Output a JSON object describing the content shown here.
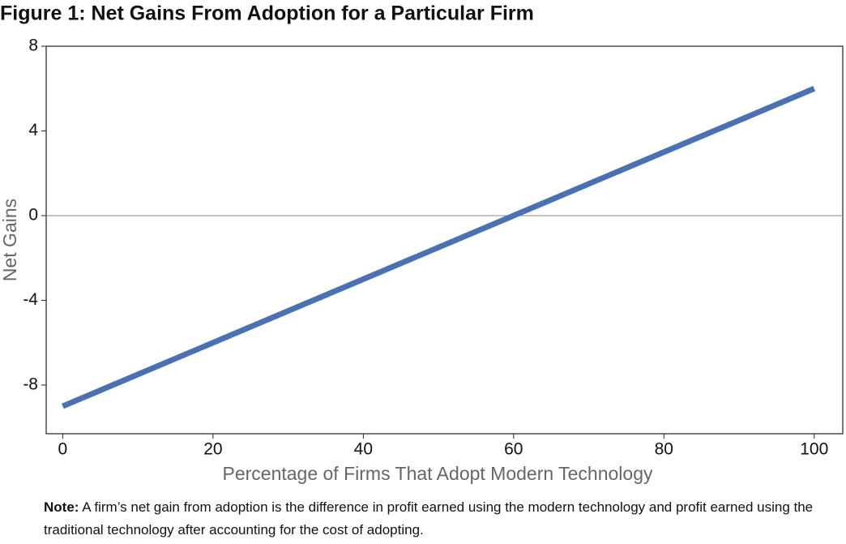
{
  "chart_data": {
    "type": "line",
    "title": "Figure 1: Net Gains From Adoption for a Particular Firm",
    "x_label": "Percentage of Firms That Adopt Modern Technology",
    "y_label": "Net Gains",
    "x": [
      0,
      100
    ],
    "series": [
      {
        "name": "Net gains",
        "color": "#4a72b2",
        "values": [
          -9,
          6
        ]
      }
    ],
    "xlim": [
      -2.2,
      103.8
    ],
    "ylim": [
      -10.3,
      8
    ],
    "xticks": [
      0,
      20,
      40,
      60,
      80,
      100
    ],
    "yticks": [
      -8,
      -4,
      0,
      4,
      8
    ],
    "note_label": "Note:",
    "note": "A firm’s net gain from adoption is the difference in profit earned using the modern technology and profit earned using the traditional technology after accounting for the cost of adopting."
  }
}
